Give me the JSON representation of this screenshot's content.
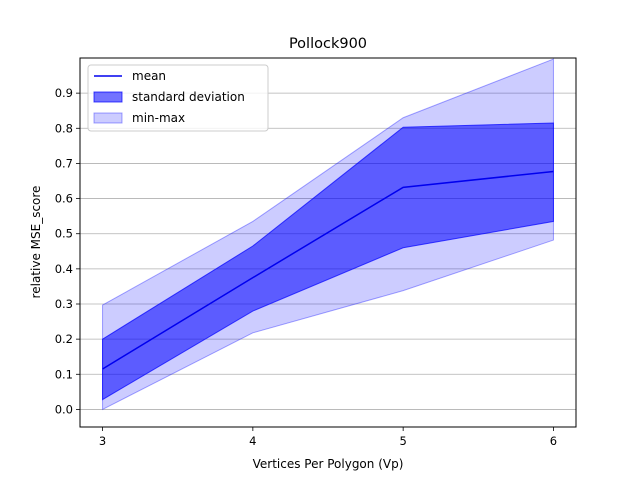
{
  "chart_data": {
    "type": "area",
    "title": "Pollock900",
    "xlabel": "Vertices Per Polygon (Vp)",
    "ylabel": "relative MSE_score",
    "x": [
      3,
      4,
      5,
      6
    ],
    "xlim": [
      2.85,
      6.15
    ],
    "ylim": [
      -0.05,
      1.0
    ],
    "xticks": [
      "3",
      "4",
      "5",
      "6"
    ],
    "yticks": [
      "0.0",
      "0.1",
      "0.2",
      "0.3",
      "0.4",
      "0.5",
      "0.6",
      "0.7",
      "0.8",
      "0.9"
    ],
    "grid": "horizontal",
    "legend_position": "top-left",
    "series": [
      {
        "name": "mean",
        "kind": "line",
        "color": "#0000ee",
        "values": [
          0.115,
          0.375,
          0.632,
          0.677
        ]
      },
      {
        "name": "standard deviation",
        "kind": "band",
        "color": "#0000ff",
        "opacity": 0.55,
        "lower": [
          0.028,
          0.28,
          0.46,
          0.535
        ],
        "upper": [
          0.2,
          0.465,
          0.803,
          0.815
        ]
      },
      {
        "name": "min-max",
        "kind": "band",
        "color": "#0000ff",
        "opacity": 0.2,
        "lower": [
          0.0,
          0.218,
          0.338,
          0.482
        ],
        "upper": [
          0.297,
          0.535,
          0.83,
          0.997
        ]
      }
    ]
  }
}
